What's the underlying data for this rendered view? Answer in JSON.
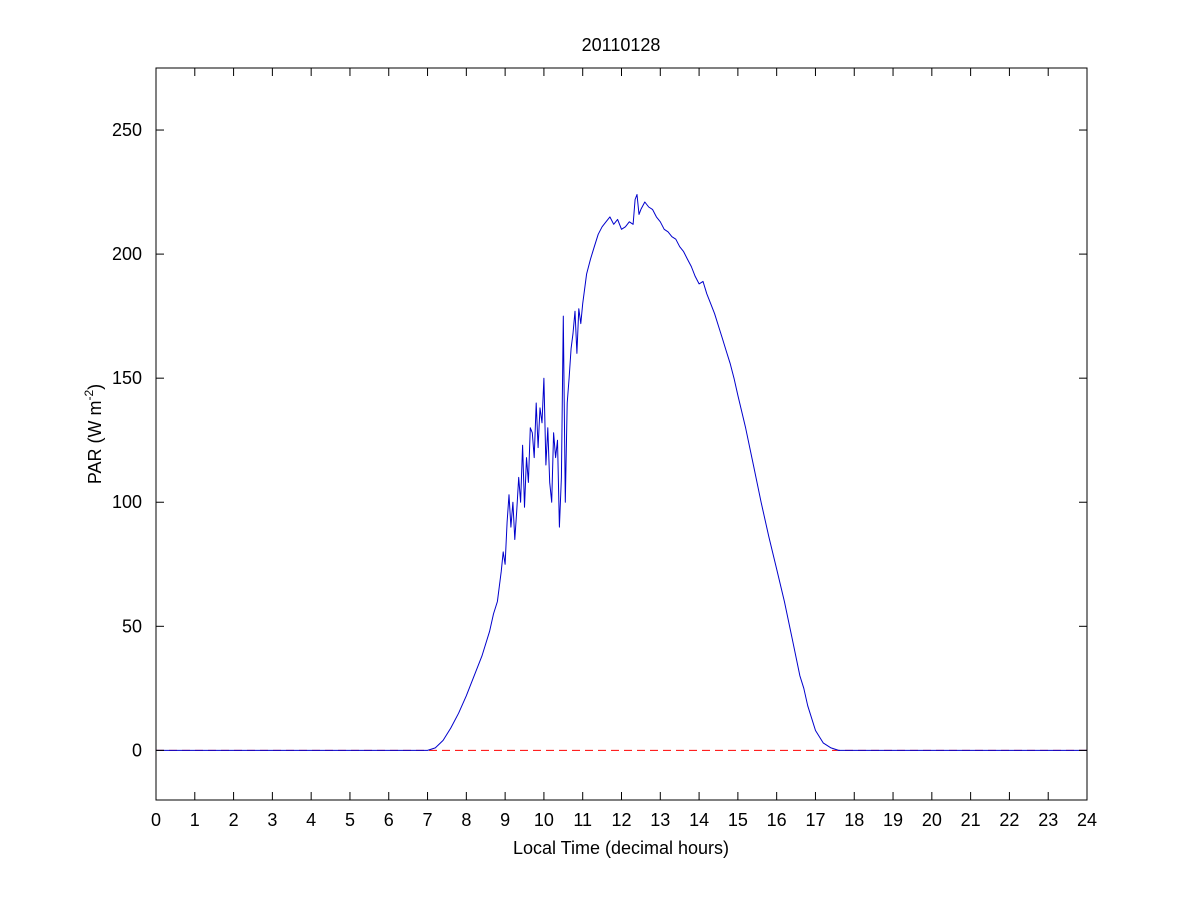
{
  "chart_data": {
    "type": "line",
    "title": "20110128",
    "xlabel": "Local Time (decimal hours)",
    "ylabel": {
      "prefix": "PAR (W m",
      "superscript": "-2",
      "suffix": ")"
    },
    "xlim": [
      0,
      24
    ],
    "ylim": [
      -20,
      275
    ],
    "xticks": [
      0,
      1,
      2,
      3,
      4,
      5,
      6,
      7,
      8,
      9,
      10,
      11,
      12,
      13,
      14,
      15,
      16,
      17,
      18,
      19,
      20,
      21,
      22,
      23,
      24
    ],
    "yticks": [
      0,
      50,
      100,
      150,
      200,
      250
    ],
    "grid": false,
    "legend": "none",
    "colors": {
      "series": "#0000cc",
      "zero_line": "#ff0000",
      "axes": "#000000"
    },
    "zero_line": {
      "y": 0,
      "style": "dashed"
    },
    "series": [
      {
        "x": [
          0,
          7.0,
          7.2,
          7.4,
          7.6,
          7.8,
          8.0,
          8.2,
          8.4,
          8.6,
          8.7,
          8.8,
          8.85,
          8.9,
          8.95,
          9.0,
          9.05,
          9.1,
          9.15,
          9.2,
          9.25,
          9.3,
          9.35,
          9.4,
          9.45,
          9.5,
          9.55,
          9.6,
          9.65,
          9.7,
          9.75,
          9.8,
          9.85,
          9.9,
          9.95,
          10.0,
          10.05,
          10.1,
          10.15,
          10.2,
          10.25,
          10.3,
          10.35,
          10.4,
          10.45,
          10.5,
          10.55,
          10.6,
          10.65,
          10.7,
          10.75,
          10.8,
          10.85,
          10.9,
          10.95,
          11.0,
          11.1,
          11.2,
          11.3,
          11.4,
          11.5,
          11.6,
          11.7,
          11.8,
          11.9,
          12.0,
          12.1,
          12.2,
          12.3,
          12.35,
          12.4,
          12.45,
          12.5,
          12.6,
          12.7,
          12.8,
          12.9,
          13.0,
          13.1,
          13.2,
          13.3,
          13.4,
          13.5,
          13.6,
          13.7,
          13.8,
          13.9,
          14.0,
          14.1,
          14.2,
          14.3,
          14.4,
          14.5,
          14.6,
          14.7,
          14.8,
          14.9,
          15.0,
          15.2,
          15.4,
          15.6,
          15.8,
          16.0,
          16.2,
          16.4,
          16.6,
          16.7,
          16.8,
          17.0,
          17.2,
          17.4,
          17.6,
          17.8,
          18.0,
          24
        ],
        "y": [
          0,
          0,
          1,
          4,
          9,
          15,
          22,
          30,
          38,
          48,
          55,
          60,
          66,
          72,
          80,
          75,
          92,
          103,
          90,
          100,
          85,
          97,
          110,
          100,
          123,
          98,
          118,
          108,
          130,
          128,
          118,
          140,
          122,
          138,
          132,
          150,
          115,
          130,
          108,
          100,
          128,
          118,
          125,
          90,
          110,
          175,
          100,
          140,
          150,
          162,
          168,
          177,
          160,
          178,
          172,
          180,
          192,
          198,
          203,
          208,
          211,
          213,
          215,
          212,
          214,
          210,
          211,
          213,
          212,
          222,
          224,
          216,
          218,
          221,
          219,
          218,
          215,
          213,
          210,
          209,
          207,
          206,
          203,
          201,
          198,
          195,
          191,
          188,
          189,
          184,
          180,
          176,
          171,
          166,
          161,
          156,
          150,
          143,
          130,
          115,
          100,
          86,
          73,
          60,
          45,
          30,
          25,
          18,
          8,
          3,
          1,
          0,
          0,
          0,
          0
        ]
      }
    ]
  }
}
